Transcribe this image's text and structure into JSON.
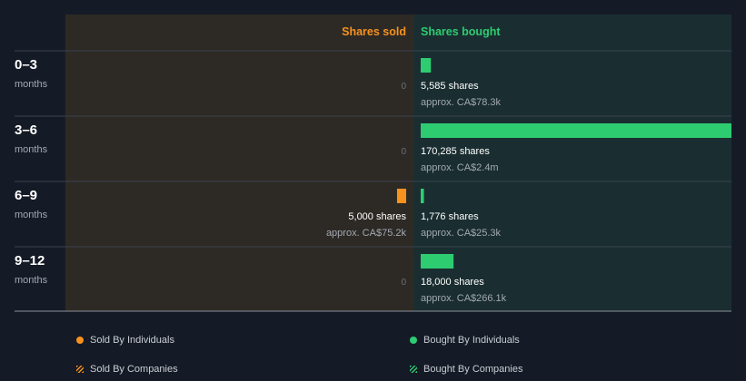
{
  "colors": {
    "sold": "#f7921e",
    "bought": "#2ecc71",
    "sold_panel": "#2d2a25",
    "bought_panel": "#1a2e31",
    "background": "#151b26"
  },
  "chart_data": {
    "type": "bar",
    "orientation": "horizontal",
    "columns": {
      "sold_label": "Shares sold",
      "bought_label": "Shares bought"
    },
    "categories": [
      {
        "period": "0–3",
        "unit": "months"
      },
      {
        "period": "3–6",
        "unit": "months"
      },
      {
        "period": "6–9",
        "unit": "months"
      },
      {
        "period": "9–12",
        "unit": "months"
      }
    ],
    "max_shares": 170285,
    "series": [
      {
        "name": "Shares sold",
        "values": [
          0,
          0,
          5000,
          0
        ],
        "labels": [
          {
            "zero": "0"
          },
          {
            "zero": "0"
          },
          {
            "shares": "5,000 shares",
            "approx": "approx. CA$75.2k"
          },
          {
            "zero": "0"
          }
        ]
      },
      {
        "name": "Shares bought",
        "values": [
          5585,
          170285,
          1776,
          18000
        ],
        "labels": [
          {
            "shares": "5,585 shares",
            "approx": "approx. CA$78.3k"
          },
          {
            "shares": "170,285 shares",
            "approx": "approx. CA$2.4m"
          },
          {
            "shares": "1,776 shares",
            "approx": "approx. CA$25.3k"
          },
          {
            "shares": "18,000 shares",
            "approx": "approx. CA$266.1k"
          }
        ]
      }
    ],
    "legend": [
      {
        "label": "Sold By Individuals",
        "marker": "dot",
        "color": "#f7921e"
      },
      {
        "label": "Bought By Individuals",
        "marker": "dot",
        "color": "#2ecc71"
      },
      {
        "label": "Sold By Companies",
        "marker": "hatch",
        "color": "#f7921e"
      },
      {
        "label": "Bought By Companies",
        "marker": "hatch",
        "color": "#2ecc71"
      }
    ]
  }
}
